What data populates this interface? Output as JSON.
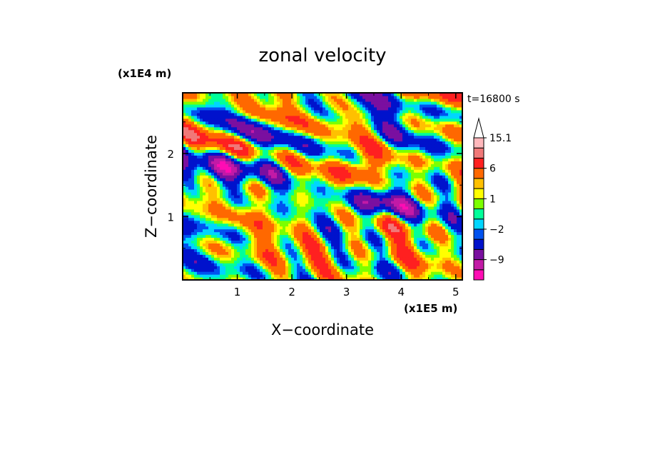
{
  "chart_data": {
    "type": "heatmap",
    "title": "zonal velocity",
    "xlabel": "X−coordinate",
    "ylabel": "Z−coordinate",
    "x_unit": "(x1E5 m)",
    "y_unit": "(x1E4 m)",
    "time_label": "t=16800 s",
    "xlim": [
      0,
      5.12
    ],
    "ylim": [
      0,
      2.96
    ],
    "x_ticks": [
      "1",
      "2",
      "3",
      "4",
      "5"
    ],
    "y_ticks": [
      "1",
      "2"
    ],
    "colorbar": {
      "levels": [
        -15,
        -12,
        -9,
        -6,
        -3,
        -2,
        -1,
        0,
        1,
        2,
        3,
        6,
        9,
        12,
        15.1
      ],
      "colors": [
        "#ff0cb4",
        "#c21aa6",
        "#7a0fa0",
        "#0012cc",
        "#0052f0",
        "#00d6ff",
        "#00ff9a",
        "#7cff00",
        "#ffff00",
        "#ffc000",
        "#ff6800",
        "#ff2020",
        "#f07878",
        "#ffb8bc"
      ],
      "tick_labels": [
        "15.1",
        "6",
        "1",
        "−2",
        "−9"
      ],
      "tick_values": [
        15.1,
        6,
        1,
        -2,
        -9
      ],
      "overflow_arrow": "top"
    },
    "field_features": [
      {
        "description": "strong negative (blue) jet",
        "x": [
          3.0,
          4.2
        ],
        "z": [
          1.0,
          1.4
        ],
        "u": -7
      },
      {
        "description": "negative band upper-left",
        "x": [
          0.3,
          1.7
        ],
        "z": [
          1.6,
          2.0
        ],
        "u": -6
      },
      {
        "description": "positive (orange) band",
        "x": [
          2.7,
          3.6
        ],
        "z": [
          1.6,
          1.9
        ],
        "u": 6
      },
      {
        "description": "weak/mixed lower layer",
        "x": [
          0,
          5.12
        ],
        "z": [
          0,
          0.9
        ],
        "u": 2
      }
    ]
  }
}
